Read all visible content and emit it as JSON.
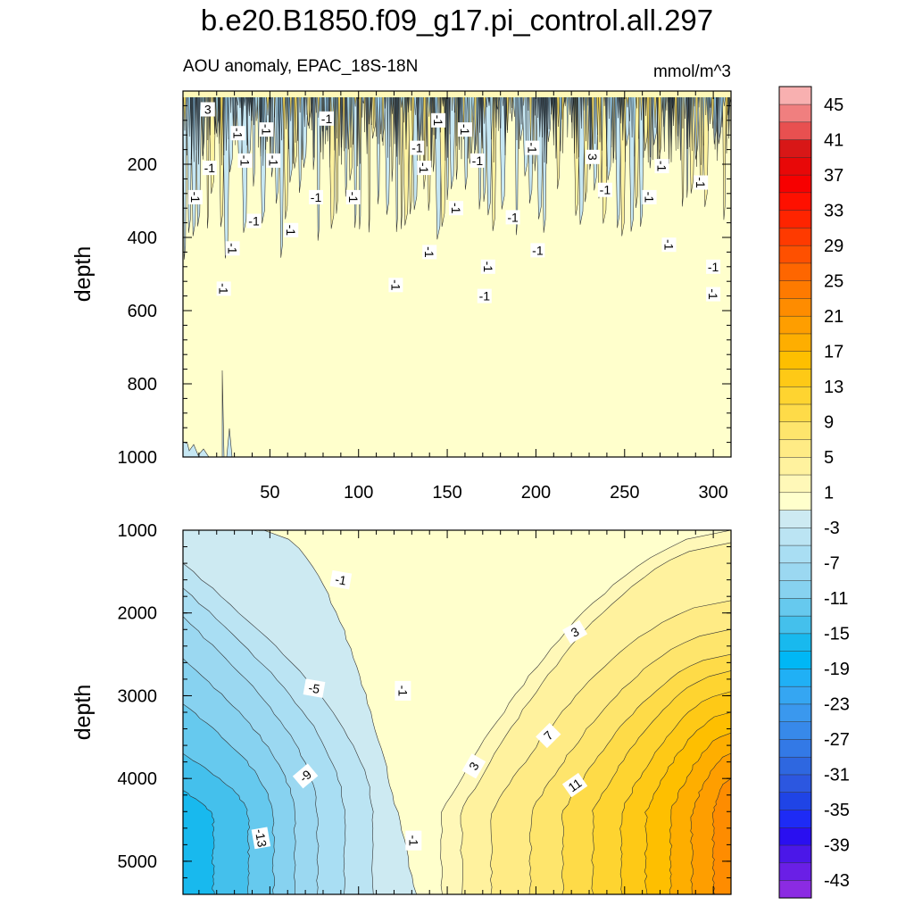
{
  "figure": {
    "title": "b.e20.B1850.f09_g17.pi_control.all.297",
    "subtitle_left": "AOU anomaly, EPAC_18S-18N",
    "subtitle_right": "mmol/m^3"
  },
  "chart_data": [
    {
      "type": "heatmap",
      "panel": "upper",
      "title": "",
      "xlabel": "",
      "ylabel": "depth",
      "xlim": [
        1,
        310
      ],
      "ylim": [
        1000,
        0
      ],
      "x_ticks": [
        50,
        100,
        150,
        200,
        250,
        300
      ],
      "y_ticks": [
        200,
        400,
        600,
        800,
        1000
      ],
      "x_tick_labels": [
        "50",
        "100",
        "150",
        "200",
        "250",
        "300"
      ],
      "y_tick_labels": [
        "200",
        "400",
        "600",
        "800",
        "1000"
      ],
      "description_values": "Mostly small anomalies (-1 to 1) with noisy near-surface variability down to ~600 m",
      "contour_labels": [
        {
          "text": "3",
          "x": 15,
          "y": 50
        },
        {
          "text": "-1",
          "x": 32,
          "y": 115
        },
        {
          "text": "-1",
          "x": 48,
          "y": 105
        },
        {
          "text": "-1",
          "x": 82,
          "y": 75
        },
        {
          "text": "-1",
          "x": 145,
          "y": 80
        },
        {
          "text": "-1",
          "x": 160,
          "y": 105
        },
        {
          "text": "-1",
          "x": 133,
          "y": 155
        },
        {
          "text": "-1",
          "x": 198,
          "y": 155
        },
        {
          "text": "3",
          "x": 232,
          "y": 180
        },
        {
          "text": "-1",
          "x": 16,
          "y": 210
        },
        {
          "text": "-1",
          "x": 36,
          "y": 190
        },
        {
          "text": "-1",
          "x": 52,
          "y": 190
        },
        {
          "text": "-1",
          "x": 167,
          "y": 190
        },
        {
          "text": "-1",
          "x": 271,
          "y": 205
        },
        {
          "text": "-1",
          "x": 8,
          "y": 290
        },
        {
          "text": "-1",
          "x": 76,
          "y": 290
        },
        {
          "text": "-1",
          "x": 97,
          "y": 290
        },
        {
          "text": "-1",
          "x": 137,
          "y": 210
        },
        {
          "text": "-1",
          "x": 239,
          "y": 270
        },
        {
          "text": "-1",
          "x": 264,
          "y": 290
        },
        {
          "text": "-1",
          "x": 293,
          "y": 250
        },
        {
          "text": "-1",
          "x": 41,
          "y": 355
        },
        {
          "text": "-1",
          "x": 62,
          "y": 380
        },
        {
          "text": "-1",
          "x": 155,
          "y": 320
        },
        {
          "text": "-1",
          "x": 187,
          "y": 345
        },
        {
          "text": "-1",
          "x": 29,
          "y": 430
        },
        {
          "text": "-1",
          "x": 140,
          "y": 440
        },
        {
          "text": "-1",
          "x": 201,
          "y": 435
        },
        {
          "text": "-1",
          "x": 275,
          "y": 420
        },
        {
          "text": "-1",
          "x": 173,
          "y": 480
        },
        {
          "text": "-1",
          "x": 300,
          "y": 480
        },
        {
          "text": "-1",
          "x": 24,
          "y": 540
        },
        {
          "text": "-1",
          "x": 121,
          "y": 530
        },
        {
          "text": "-1",
          "x": 171,
          "y": 560
        },
        {
          "text": "-1",
          "x": 300,
          "y": 555
        }
      ]
    },
    {
      "type": "heatmap",
      "panel": "lower",
      "title": "",
      "xlabel": "",
      "ylabel": "depth",
      "xlim": [
        1,
        310
      ],
      "ylim": [
        5400,
        1000
      ],
      "y_ticks": [
        1000,
        2000,
        3000,
        4000,
        5000
      ],
      "y_tick_labels": [
        "1000",
        "2000",
        "3000",
        "4000",
        "5000"
      ],
      "description_values": "Negative anomaly on the west (min ~ -17 near 4500 m), positive anomaly on the east (max ~ 23 near 4700 m), zero line near x=135",
      "contour_labels": [
        {
          "text": "-1",
          "x": 90,
          "y": 1600
        },
        {
          "text": "3",
          "x": 222,
          "y": 2230
        },
        {
          "text": "-5",
          "x": 75,
          "y": 2910
        },
        {
          "text": "-1",
          "x": 125,
          "y": 2940
        },
        {
          "text": "7",
          "x": 207,
          "y": 3480
        },
        {
          "text": "3",
          "x": 165,
          "y": 3850
        },
        {
          "text": "-9",
          "x": 70,
          "y": 3970
        },
        {
          "text": "11",
          "x": 222,
          "y": 4080
        },
        {
          "text": "-13",
          "x": 45,
          "y": 4720
        },
        {
          "text": "-1",
          "x": 131,
          "y": 4750
        }
      ]
    },
    {
      "type": "colorbar",
      "levels": [
        -45,
        -43,
        -41,
        -39,
        -37,
        -35,
        -33,
        -31,
        -29,
        -27,
        -25,
        -23,
        -21,
        -19,
        -17,
        -15,
        -13,
        -11,
        -9,
        -7,
        -5,
        -3,
        -1,
        1,
        3,
        5,
        7,
        9,
        11,
        13,
        15,
        17,
        19,
        21,
        23,
        25,
        27,
        29,
        31,
        33,
        35,
        37,
        39,
        41,
        43,
        45
      ],
      "colors": [
        "#8b2be2",
        "#6a1fe6",
        "#4b17e8",
        "#2a0ff0",
        "#1e2bf5",
        "#1f44e6",
        "#2c57e0",
        "#2e67e0",
        "#3379e6",
        "#3789ea",
        "#3a98ee",
        "#35a6f2",
        "#20b0f5",
        "#00b7f5",
        "#18b9ee",
        "#44c0ec",
        "#66c9ee",
        "#87d2f0",
        "#9bd8f1",
        "#a9def3",
        "#bbe4f3",
        "#cdeaf2",
        "#ffffcc",
        "#fff8b8",
        "#fff29e",
        "#ffeb85",
        "#fee56c",
        "#fedb48",
        "#fed430",
        "#fec916",
        "#febf00",
        "#feae00",
        "#fe9e00",
        "#fe8c00",
        "#fe7a00",
        "#fe6600",
        "#fe5000",
        "#fe3a00",
        "#fe2400",
        "#fe1000",
        "#f70000",
        "#e80808",
        "#d81717",
        "#e85050",
        "#f07f7f",
        "#f8b0b0"
      ],
      "tick_labels": [
        "45",
        "41",
        "37",
        "33",
        "29",
        "25",
        "21",
        "17",
        "13",
        "9",
        "5",
        "1",
        "-3",
        "-7",
        "-11",
        "-15",
        "-19",
        "-23",
        "-27",
        "-31",
        "-35",
        "-39",
        "-43"
      ]
    }
  ]
}
